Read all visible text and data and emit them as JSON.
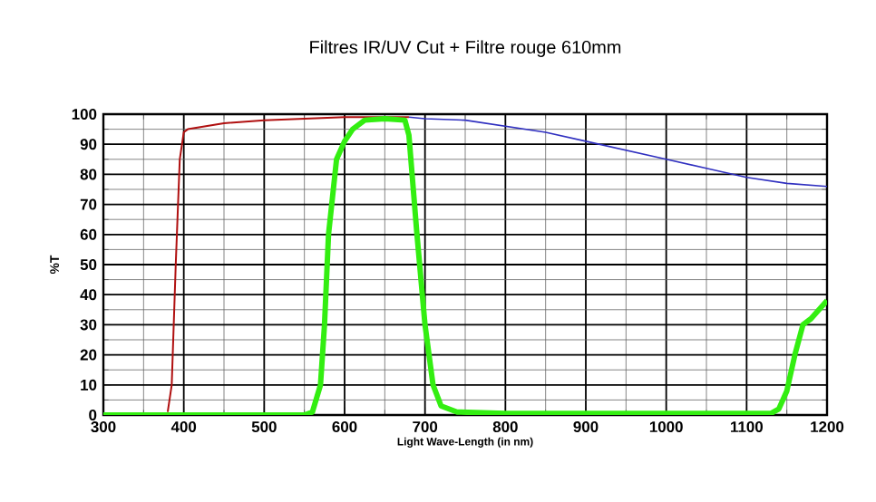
{
  "chart_data": {
    "type": "line",
    "title": "Filtres IR/UV Cut + Filtre rouge 610mm",
    "xlabel": "Light Wave-Length (in nm)",
    "ylabel": "%T",
    "xlim": [
      300,
      1200
    ],
    "ylim": [
      0,
      100
    ],
    "xticks": [
      300,
      400,
      500,
      600,
      700,
      800,
      900,
      1000,
      1100,
      1200
    ],
    "yticks": [
      0,
      10,
      20,
      30,
      40,
      50,
      60,
      70,
      80,
      90,
      100
    ],
    "grid": true,
    "marker": "none",
    "line_style": "solid",
    "series": [
      {
        "color": "#b01010",
        "x": [
          380,
          385,
          390,
          395,
          400,
          405,
          450,
          500,
          550,
          600,
          650,
          680
        ],
        "values": [
          1,
          10,
          50,
          85,
          94,
          95,
          97,
          98,
          98.5,
          99,
          99,
          99
        ]
      },
      {
        "color": "#3030c0",
        "x": [
          680,
          700,
          750,
          800,
          850,
          900,
          950,
          1000,
          1050,
          1100,
          1150,
          1200
        ],
        "values": [
          99,
          98.5,
          98,
          96,
          94,
          91,
          88,
          85,
          82,
          79,
          77,
          76
        ]
      },
      {
        "color": "#33ee11",
        "x": [
          300,
          550,
          560,
          570,
          575,
          580,
          590,
          600,
          610,
          625,
          650,
          675,
          680,
          690,
          700,
          710,
          720,
          740,
          800,
          1000,
          1130,
          1140,
          1150,
          1160,
          1170,
          1180,
          1190,
          1200
        ],
        "values": [
          0,
          0,
          1,
          10,
          30,
          60,
          85,
          91,
          95,
          98,
          98.5,
          98,
          93,
          60,
          30,
          10,
          3,
          1,
          0.5,
          0.5,
          0.5,
          2,
          8,
          20,
          30,
          32,
          35,
          38
        ]
      }
    ]
  }
}
